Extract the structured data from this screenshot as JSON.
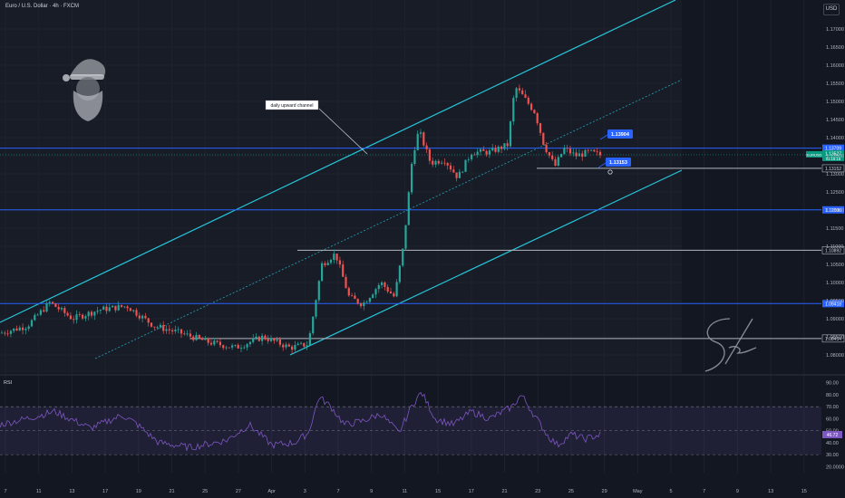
{
  "header": {
    "symbol_title": "Euro / U.S. Dollar · 4h · FXCM",
    "currency_button": "USD"
  },
  "chart_data": {
    "type": "candlestick",
    "y_axis_ticks": [
      1.17,
      1.165,
      1.16,
      1.155,
      1.15,
      1.145,
      1.14,
      1.135,
      1.13,
      1.125,
      1.12,
      1.115,
      1.11,
      1.105,
      1.1,
      1.095,
      1.09,
      1.085,
      1.08
    ],
    "y_axis_tick_labels": [
      "1.17000",
      "1.16500",
      "1.16000",
      "1.15500",
      "1.15000",
      "1.14500",
      "1.14000",
      "1.13500",
      "1.13000",
      "1.12500",
      "1.12000",
      "1.11500",
      "1.11000",
      "1.10500",
      "1.10000",
      "1.09500",
      "1.09000",
      "1.08500",
      "1.08000"
    ],
    "ylim": [
      1.075,
      1.178
    ],
    "x_axis_labels": [
      "7",
      "11",
      "13",
      "17",
      "19",
      "21",
      "25",
      "27",
      "Apr",
      "3",
      "7",
      "9",
      "11",
      "15",
      "17",
      "21",
      "23",
      "25",
      "29",
      "May",
      "5",
      "7",
      "9",
      "13",
      "15"
    ],
    "price_levels": [
      {
        "label": "1.13709",
        "value": 1.13709,
        "color": "#2962ff"
      },
      {
        "label": "1.13152",
        "value": 1.13152,
        "color": "#b2b5be"
      },
      {
        "label": "1.12006",
        "value": 1.12006,
        "color": "#2962ff"
      },
      {
        "label": "1.10892",
        "value": 1.10892,
        "color": "#b2b5be"
      },
      {
        "label": "1.09418",
        "value": 1.09418,
        "color": "#2962ff"
      },
      {
        "label": "1.08454",
        "value": 1.08454,
        "color": "#b2b5be"
      }
    ],
    "current_price": {
      "label": "1.13527",
      "countdown": "01:16:15",
      "symbol": "EURUSD",
      "value": 1.13527,
      "color": "#089981"
    },
    "callouts": [
      {
        "label": "1.13904",
        "value": 1.13904
      },
      {
        "label": "1.13153",
        "value": 1.13153
      }
    ],
    "annotation": "daily upward channel",
    "signature": "Skeptic",
    "candle_color_up": "#26a69a",
    "candle_color_down": "#ef5350",
    "channel_color": "#26c6da",
    "rsi": {
      "label": "RSI",
      "ticks": [
        90,
        80,
        70,
        60,
        50,
        40,
        30,
        20
      ],
      "tick_labels": [
        "90.00",
        "80.00",
        "70.00",
        "60.00",
        "50.00",
        "40.00",
        "30.00",
        "20.0000"
      ],
      "ylim": [
        15,
        92
      ],
      "band": [
        30,
        70
      ],
      "midline": 50,
      "current": {
        "label": "46.72",
        "value": 46.72
      },
      "line_color": "#7e57c2"
    }
  }
}
